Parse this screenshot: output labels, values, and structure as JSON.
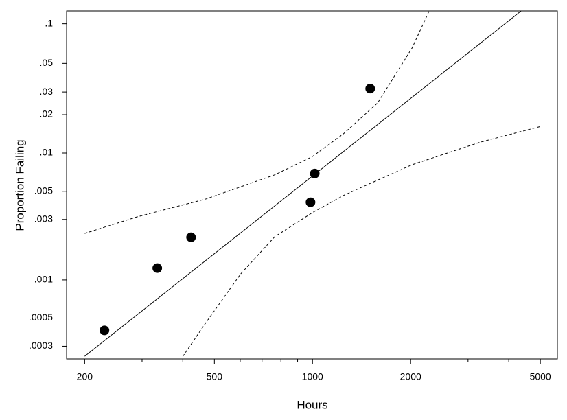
{
  "chart_data": {
    "type": "probability-plot",
    "xlabel": "Hours",
    "ylabel": "Proportion Failing",
    "xscale": "log",
    "yscale": "weibull",
    "xlim": [
      176,
      5640
    ],
    "ylim": [
      0.000238,
      0.1245
    ],
    "xticks": [
      200,
      500,
      1000,
      2000,
      5000
    ],
    "xminor": [
      300,
      400,
      600,
      700,
      800,
      900,
      3000,
      4000
    ],
    "yticks": [
      {
        "value": 0.1,
        "label": ".1"
      },
      {
        "value": 0.05,
        "label": ".05"
      },
      {
        "value": 0.03,
        "label": ".03"
      },
      {
        "value": 0.02,
        "label": ".02"
      },
      {
        "value": 0.01,
        "label": ".01"
      },
      {
        "value": 0.005,
        "label": ".005"
      },
      {
        "value": 0.003,
        "label": ".003"
      },
      {
        "value": 0.001,
        "label": ".001"
      },
      {
        "value": 0.0005,
        "label": ".0005"
      },
      {
        "value": 0.0003,
        "label": ".0003"
      }
    ],
    "points": {
      "color": "#000000",
      "x": [
        230,
        334,
        424,
        986,
        1016,
        1503
      ],
      "values": [
        0.0004,
        0.00124,
        0.00217,
        0.0041,
        0.0069,
        0.0319
      ]
    },
    "fit": {
      "color": "#000000",
      "x": [
        200,
        4365
      ],
      "values": [
        0.00025,
        0.1245
      ]
    },
    "bands": [
      {
        "color": "#000000",
        "x": [
          200,
          290,
          472,
          766,
          1000,
          1244,
          1585,
          2020,
          2280
        ],
        "values": [
          0.00233,
          0.00315,
          0.00436,
          0.00674,
          0.0094,
          0.01415,
          0.0247,
          0.0656,
          0.1245
        ]
      },
      {
        "color": "#000000",
        "x": [
          400,
          472,
          601,
          766,
          1000,
          1244,
          2020,
          3280,
          4975
        ],
        "values": [
          0.000249,
          0.000464,
          0.00111,
          0.002194,
          0.0034,
          0.00464,
          0.0081,
          0.0122,
          0.0161
        ]
      }
    ]
  }
}
